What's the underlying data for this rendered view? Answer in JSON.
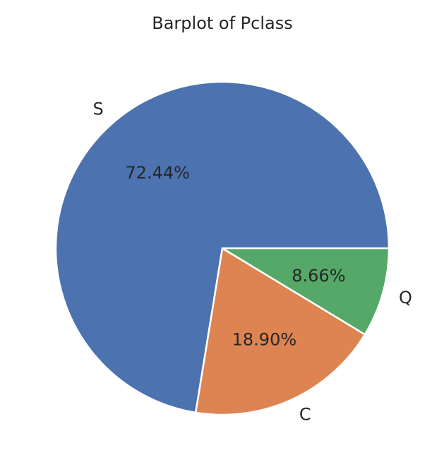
{
  "chart_data": {
    "type": "pie",
    "title": "Barplot of Pclass",
    "labels": [
      "S",
      "C",
      "Q"
    ],
    "values": [
      72.44,
      18.9,
      8.66
    ],
    "pct_labels": [
      "72.44%",
      "18.90%",
      "8.66%"
    ],
    "colors": [
      "#4c72b0",
      "#dd8452",
      "#55a868"
    ],
    "start_angle": 0,
    "direction": "counterclockwise"
  }
}
